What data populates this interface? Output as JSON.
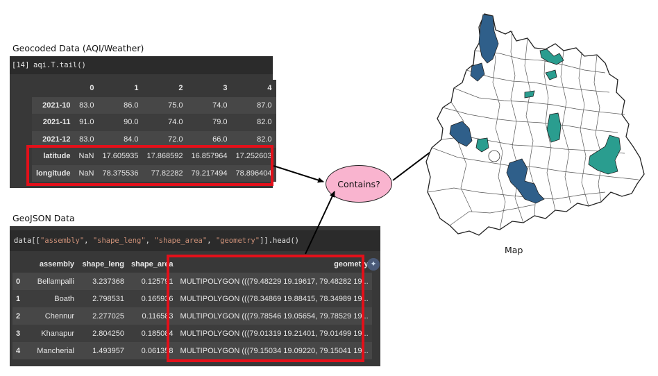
{
  "labels": {
    "aqi_title": "Geocoded Data (AQI/Weather)",
    "geo_title": "GeoJSON Data",
    "contains": "Contains?",
    "map": "Map"
  },
  "aqi": {
    "prompt": "[14]",
    "code": "aqi.T.tail()",
    "columns": [
      "",
      "0",
      "1",
      "2",
      "3",
      "4"
    ],
    "rows": [
      [
        "2021-10",
        "83.0",
        "86.0",
        "75.0",
        "74.0",
        "87.0"
      ],
      [
        "2021-11",
        "91.0",
        "90.0",
        "74.0",
        "79.0",
        "82.0"
      ],
      [
        "2021-12",
        "83.0",
        "84.0",
        "72.0",
        "66.0",
        "82.0"
      ],
      [
        "latitude",
        "NaN",
        "17.605935",
        "17.868592",
        "16.857964",
        "17.252603"
      ],
      [
        "longitude",
        "NaN",
        "78.375536",
        "77.82282",
        "79.217494",
        "78.896404"
      ]
    ]
  },
  "geo": {
    "code_prefix": "data[[",
    "code_args": [
      "\"assembly\"",
      "\"shape_leng\"",
      "\"shape_area\"",
      "\"geometry\""
    ],
    "code_suffix": "]].head()",
    "columns": [
      "",
      "assembly",
      "shape_leng",
      "shape_area",
      "geometry"
    ],
    "rows": [
      [
        "0",
        "Bellampalli",
        "3.237368",
        "0.125791",
        "MULTIPOLYGON (((79.48229 19.19617, 79.48282 19..."
      ],
      [
        "1",
        "Boath",
        "2.798531",
        "0.165936",
        "MULTIPOLYGON (((78.34869 19.88415, 78.34989 19..."
      ],
      [
        "2",
        "Chennur",
        "2.277025",
        "0.116583",
        "MULTIPOLYGON (((79.78546 19.05654, 79.78529 19..."
      ],
      [
        "3",
        "Khanapur",
        "2.804250",
        "0.185084",
        "MULTIPOLYGON (((79.01319 19.21401, 79.01499 19..."
      ],
      [
        "4",
        "Mancherial",
        "1.493957",
        "0.061358",
        "MULTIPOLYGON (((79.15034 19.09220, 79.15041 19..."
      ]
    ]
  },
  "colors": {
    "highlight_box": "#e3101a",
    "contains_fill": "#f9b4cf",
    "map_dark_blue": "#2f5f8a",
    "map_teal": "#2a9d8f"
  }
}
